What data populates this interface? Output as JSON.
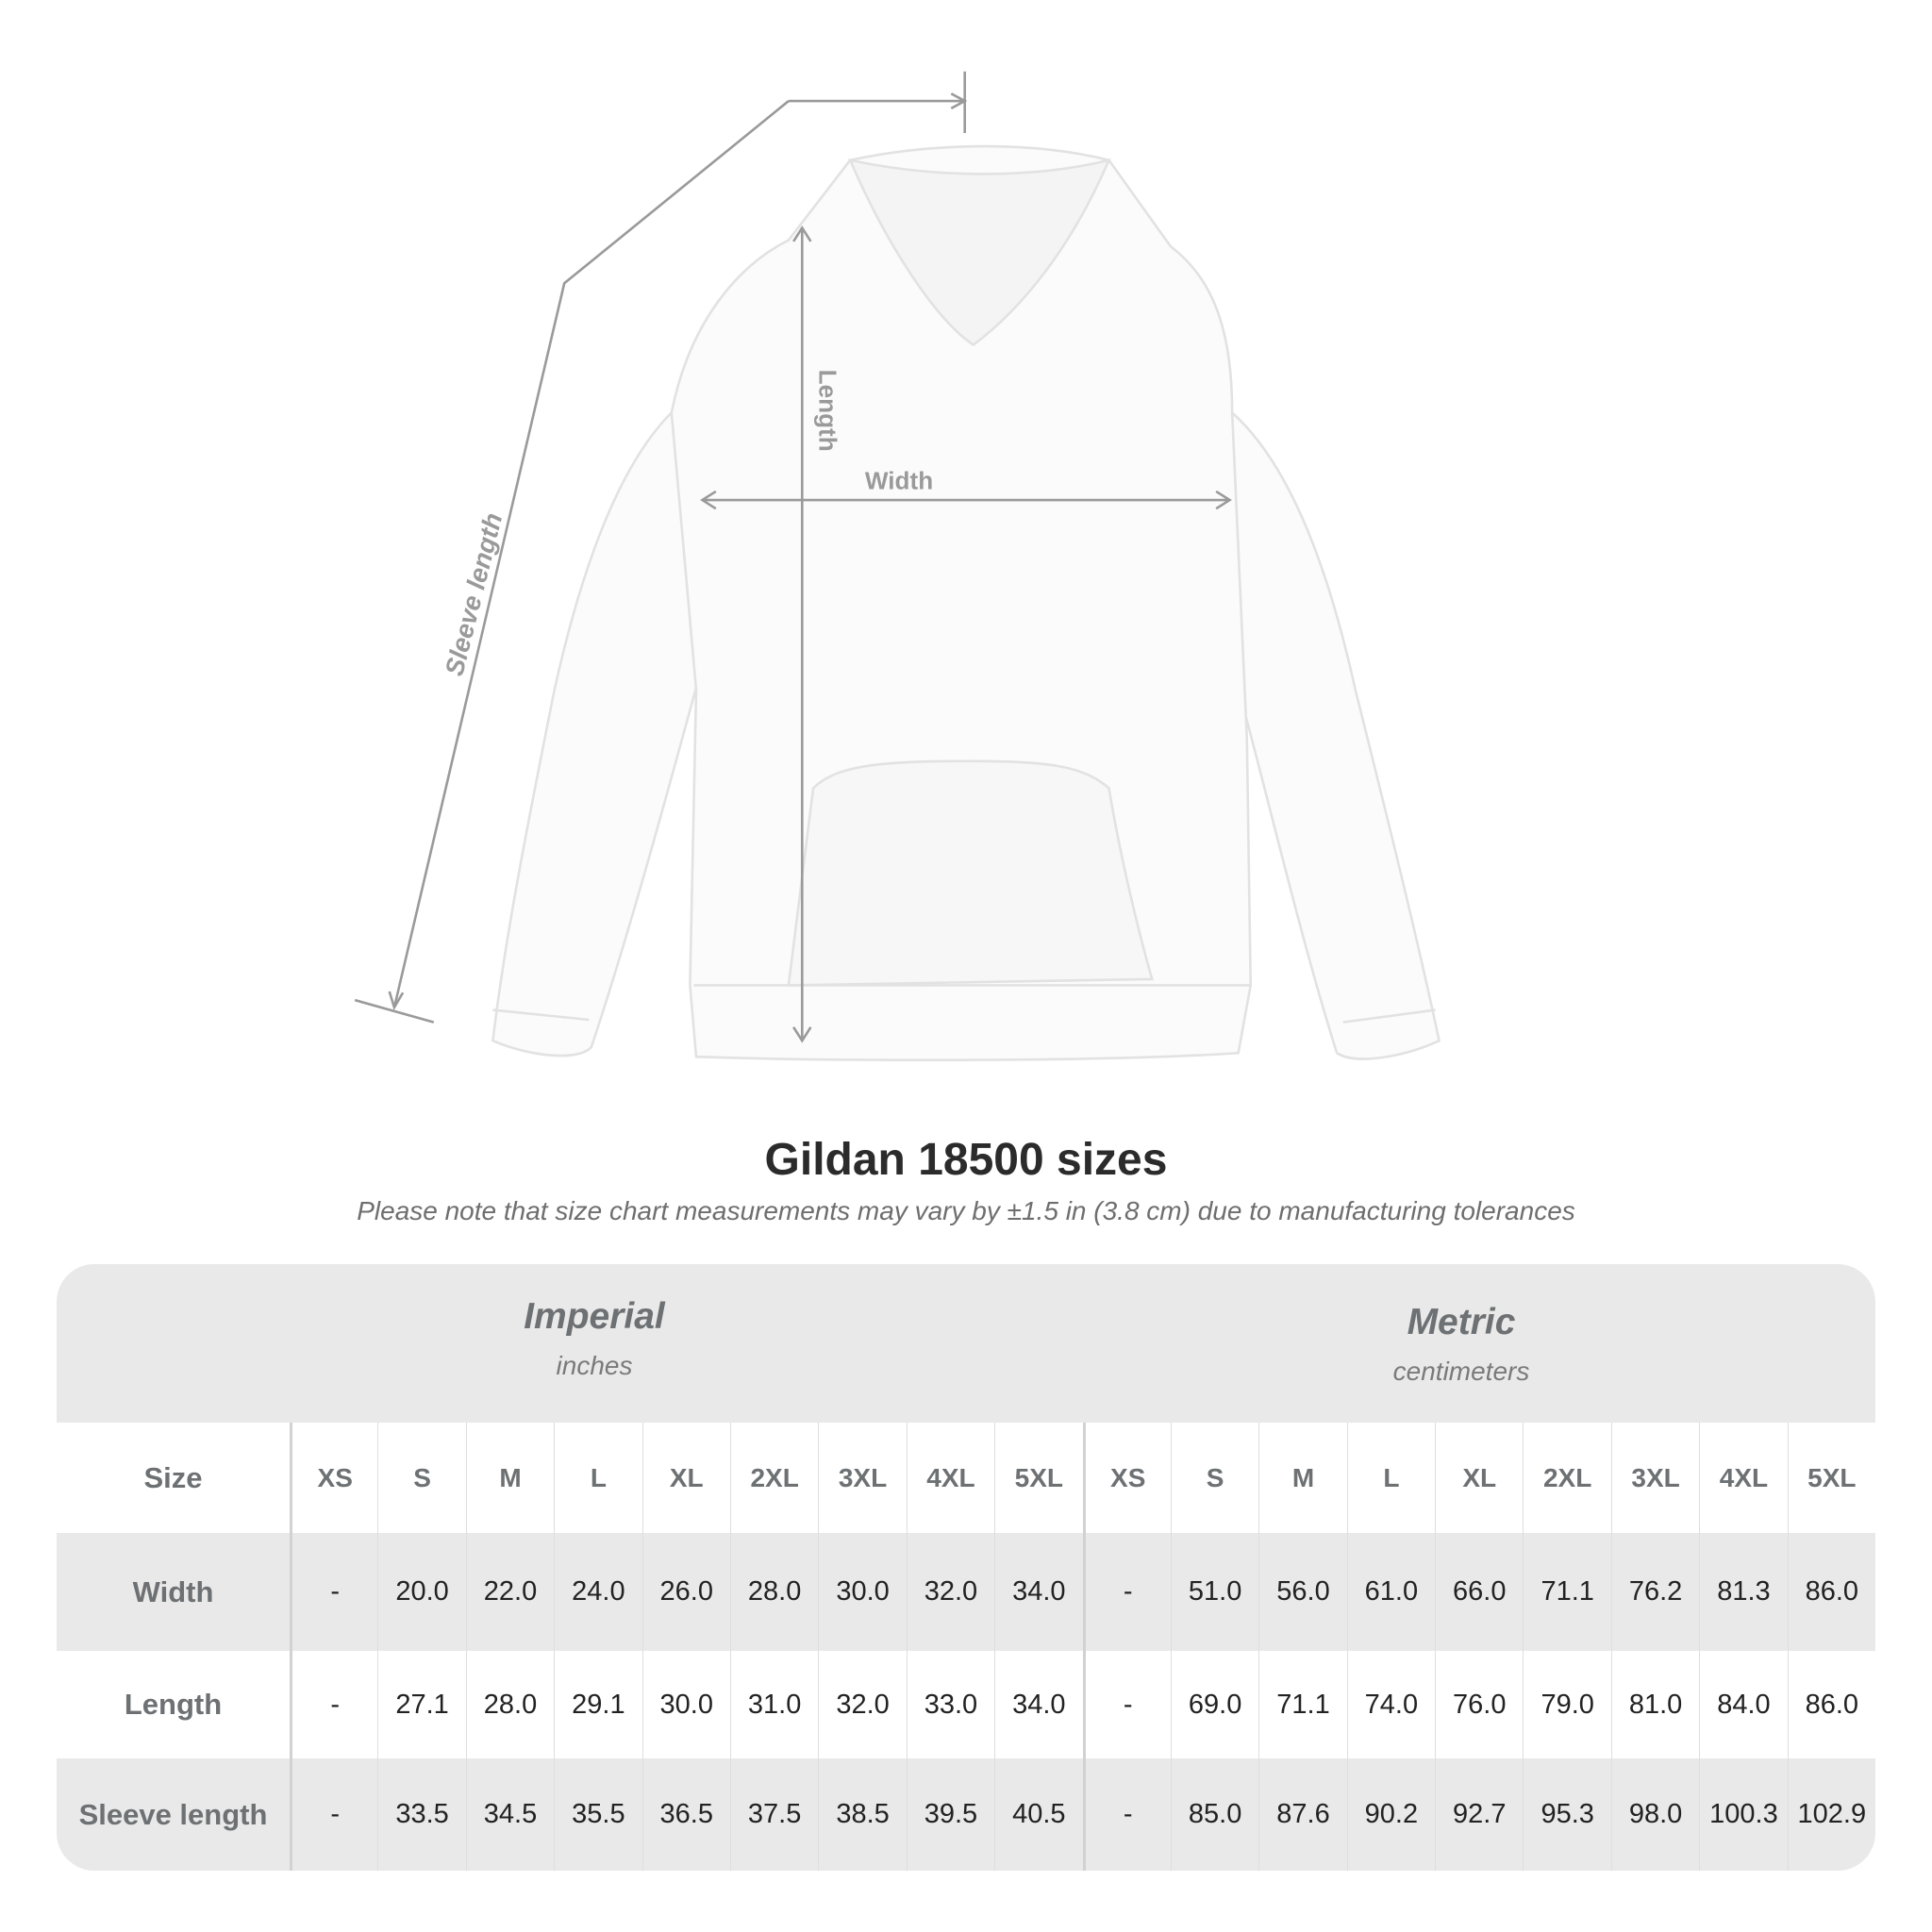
{
  "diagram": {
    "labels": {
      "length": "Length",
      "width": "Width",
      "sleeve": "Sleeve length"
    },
    "line_color": "#9a9a9a"
  },
  "title": "Gildan 18500 sizes",
  "subtitle": "Please note that size chart measurements may vary by ±1.5 in (3.8 cm) due to manufacturing tolerances",
  "table": {
    "imperial": {
      "name": "Imperial",
      "unit": "inches"
    },
    "metric": {
      "name": "Metric",
      "unit": "centimeters"
    },
    "size_label": "Size",
    "sizes": [
      "XS",
      "S",
      "M",
      "L",
      "XL",
      "2XL",
      "3XL",
      "4XL",
      "5XL"
    ],
    "rows": [
      {
        "label": "Width",
        "imperial": [
          "-",
          "20.0",
          "22.0",
          "24.0",
          "26.0",
          "28.0",
          "30.0",
          "32.0",
          "34.0"
        ],
        "metric": [
          "-",
          "51.0",
          "56.0",
          "61.0",
          "66.0",
          "71.1",
          "76.2",
          "81.3",
          "86.0"
        ]
      },
      {
        "label": "Length",
        "imperial": [
          "-",
          "27.1",
          "28.0",
          "29.1",
          "30.0",
          "31.0",
          "32.0",
          "33.0",
          "34.0"
        ],
        "metric": [
          "-",
          "69.0",
          "71.1",
          "74.0",
          "76.0",
          "79.0",
          "81.0",
          "84.0",
          "86.0"
        ]
      },
      {
        "label": "Sleeve length",
        "imperial": [
          "-",
          "33.5",
          "34.5",
          "35.5",
          "36.5",
          "37.5",
          "38.5",
          "39.5",
          "40.5"
        ],
        "metric": [
          "-",
          "85.0",
          "87.6",
          "90.2",
          "92.7",
          "95.3",
          "98.0",
          "100.3",
          "102.9"
        ]
      }
    ]
  }
}
